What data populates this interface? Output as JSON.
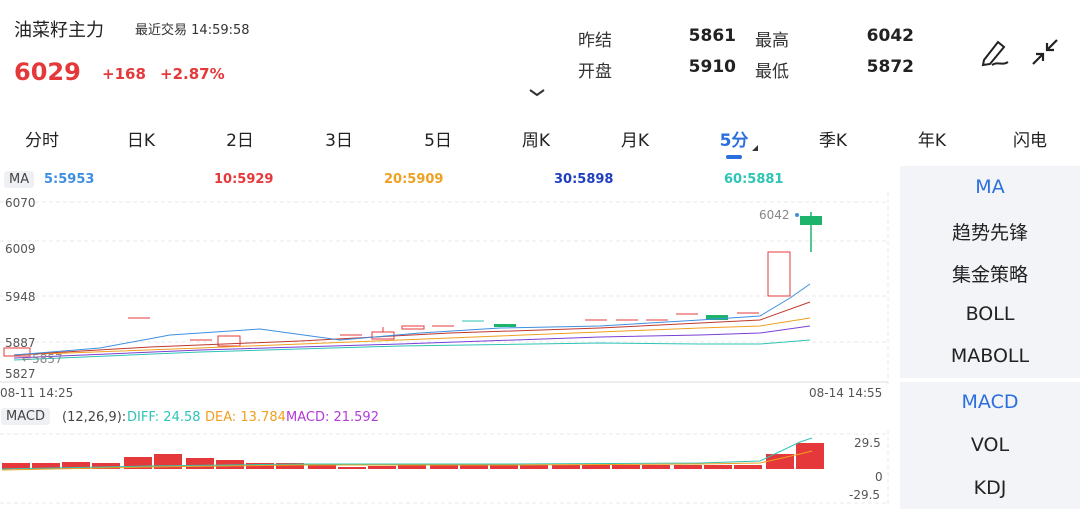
{
  "header": {
    "name": "油菜籽主力",
    "trade_label": "最近交易",
    "trade_time": "14:59:58",
    "price": "6029",
    "change": "+168",
    "change_pct": "+2.87%",
    "stats": {
      "prev_settle_label": "昨结",
      "prev_settle": "5861",
      "open_label": "开盘",
      "open": "5910",
      "high_label": "最高",
      "high": "6042",
      "low_label": "最低",
      "low": "5872"
    }
  },
  "tabs": [
    "分时",
    "日K",
    "2日",
    "3日",
    "5日",
    "周K",
    "月K",
    "5分",
    "季K",
    "年K",
    "闪电"
  ],
  "active_tab": "5分",
  "ma": {
    "tag": "MA",
    "items": [
      {
        "label": "5:5953",
        "color": "#3f8fe0"
      },
      {
        "label": "10:5929",
        "color": "#e5383b"
      },
      {
        "label": "20:5909",
        "color": "#f0a020"
      },
      {
        "label": "30:5898",
        "color": "#1f3fbf"
      },
      {
        "label": "60:5881",
        "color": "#2ec4b6"
      }
    ]
  },
  "price_axis": [
    "6070",
    "6009",
    "5948",
    "5887",
    "5827"
  ],
  "low_marker": "5857",
  "high_marker": "6042",
  "time_axis": {
    "start": "08-11 14:25",
    "end": "08-14 14:55"
  },
  "macd": {
    "tag": "MACD",
    "params": "(12,26,9):",
    "diff": "DIFF: 24.58",
    "dea": "DEA: 13.784",
    "macd": "MACD: 21.592",
    "axis": [
      "29.5",
      "0",
      "-29.5"
    ]
  },
  "side_menu": [
    "MA",
    "趋势先锋",
    "集金策略",
    "BOLL",
    "MABOLL",
    "MACD",
    "VOL",
    "KDJ"
  ],
  "side_active": [
    "MA",
    "MACD"
  ],
  "colors": {
    "up": "#e5383b",
    "down": "#1db36b",
    "accent": "#2b6fde"
  }
}
